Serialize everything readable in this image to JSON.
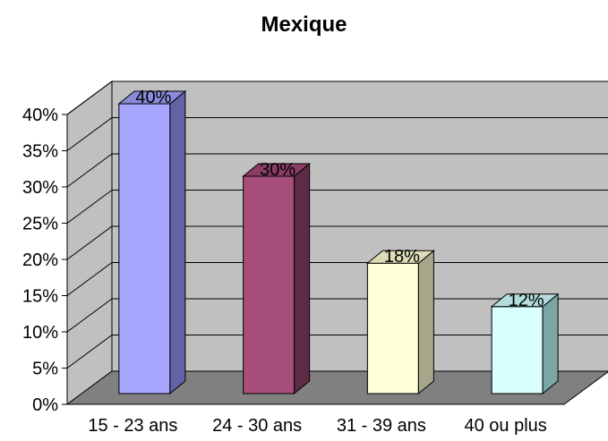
{
  "chart_data": {
    "type": "bar",
    "title": "Mexique",
    "categories": [
      "15 - 23 ans",
      "24 - 30 ans",
      "31 - 39 ans",
      "40 ou plus"
    ],
    "values": [
      40,
      30,
      18,
      12
    ],
    "value_labels": [
      "40%",
      "30%",
      "18%",
      "12%"
    ],
    "yticks": [
      0,
      5,
      10,
      15,
      20,
      25,
      30,
      35,
      40
    ],
    "ytick_labels": [
      "0%",
      "5%",
      "10%",
      "15%",
      "20%",
      "25%",
      "30%",
      "35%",
      "40%"
    ],
    "ylim": [
      0,
      40
    ],
    "grid": true,
    "style": "3d-column",
    "colors": {
      "bar_fronts": [
        "#a6a6ff",
        "#a64d7a",
        "#ffffd9",
        "#d9ffff"
      ],
      "bar_sides": [
        "#6262a6",
        "#5e2a44",
        "#a6a68a",
        "#7aa6a6"
      ],
      "bar_tops": [
        "#8a8ad9",
        "#8a3d63",
        "#dcdcb8",
        "#b3dcdc"
      ],
      "wall": "#c0c0c0",
      "floor": "#808080",
      "grid": "#000000"
    }
  }
}
